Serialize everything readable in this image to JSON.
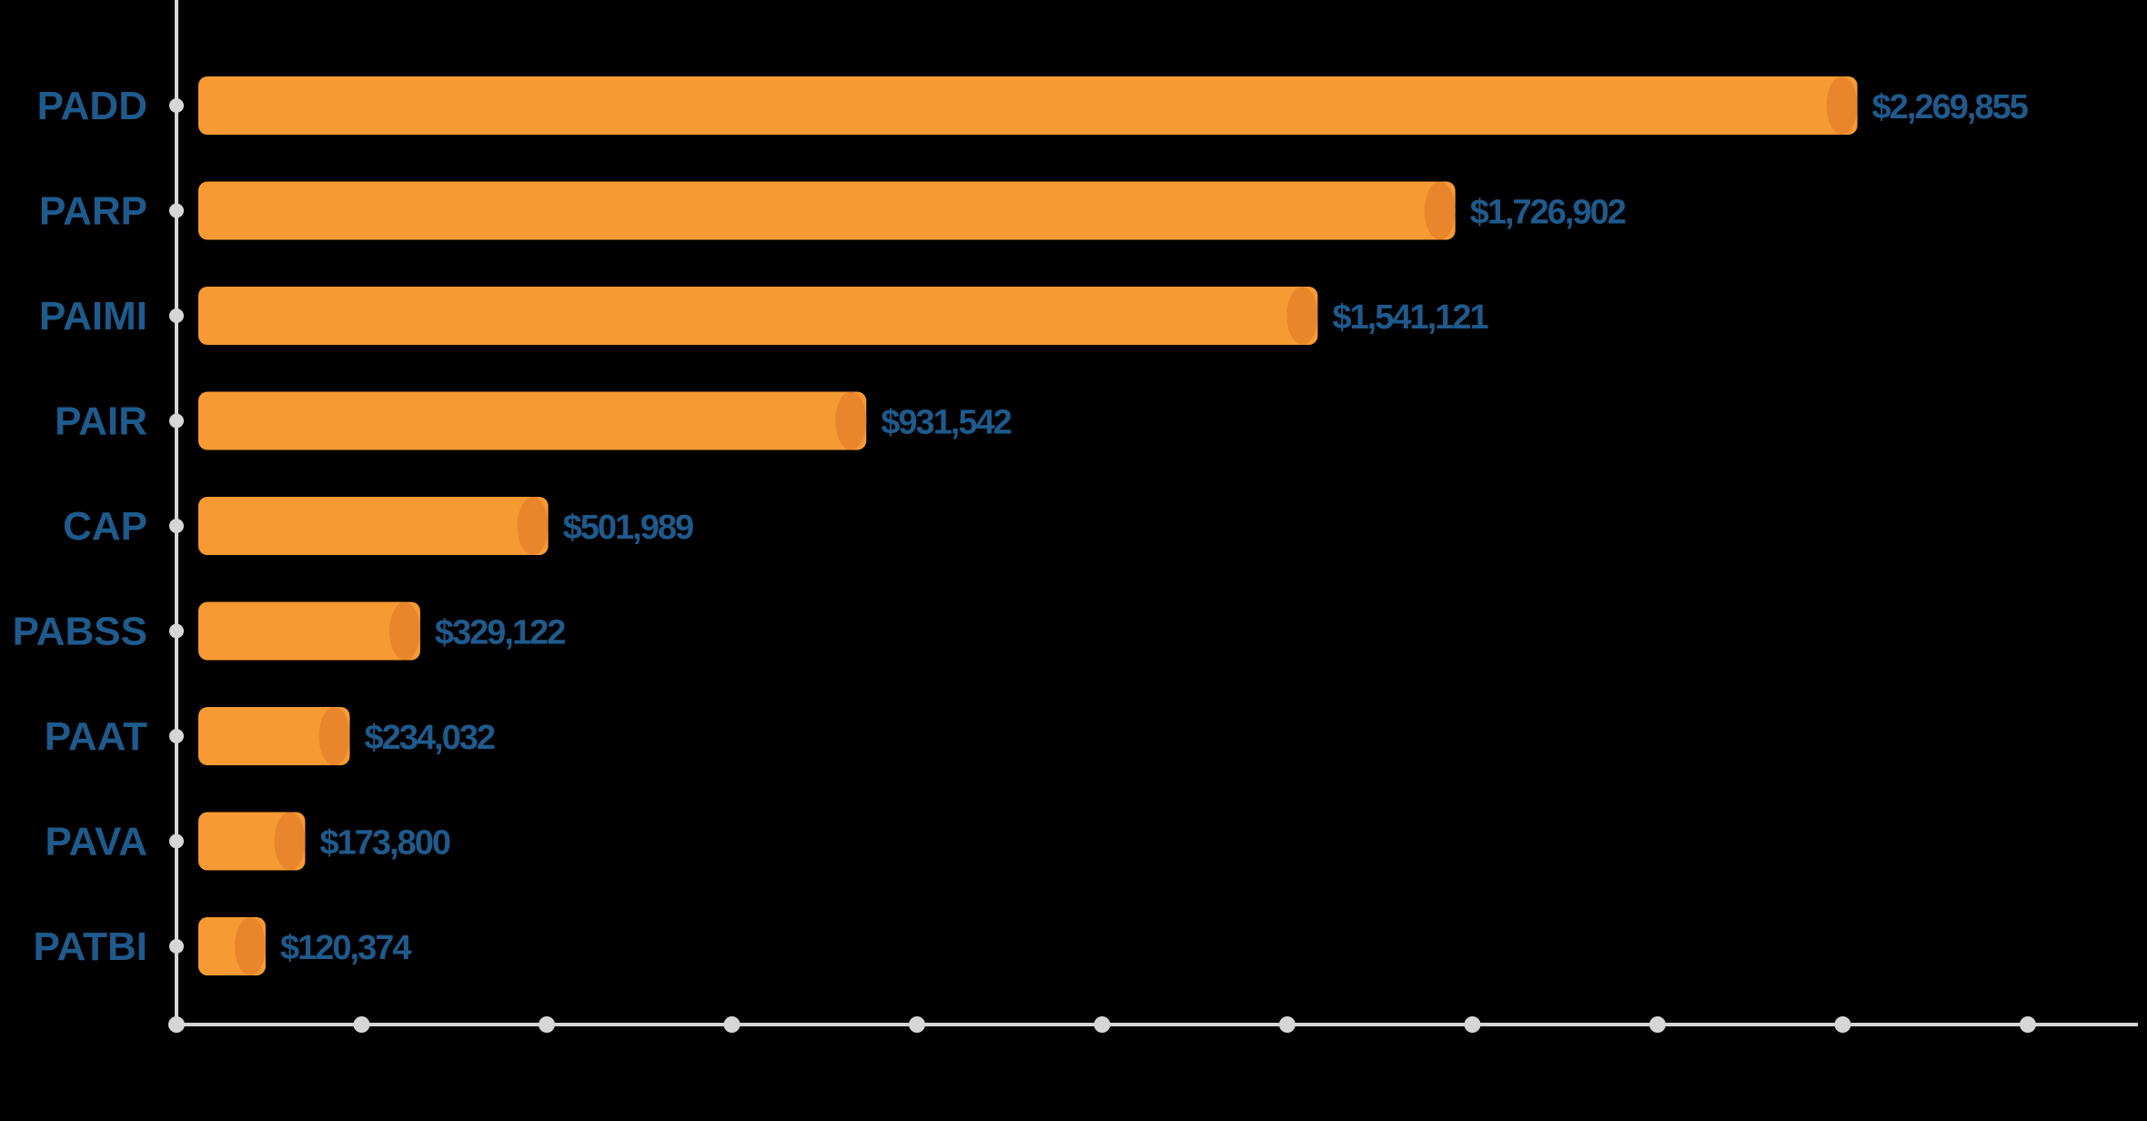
{
  "chart_data": {
    "type": "bar",
    "orientation": "horizontal",
    "title": "",
    "xlabel": "",
    "ylabel": "",
    "categories": [
      "PADD",
      "PARP",
      "PAIMI",
      "PAIR",
      "CAP",
      "PABSS",
      "PAAT",
      "PAVA",
      "PATBI"
    ],
    "values": [
      2269855,
      1726902,
      1541121,
      931542,
      501989,
      329122,
      234032,
      173800,
      120374
    ],
    "value_labels": [
      "$2,269,855",
      "$1,726,902",
      "$1,541,121",
      "$931,542",
      "$501,989",
      "$329,122",
      "$234,032",
      "$173,800",
      "$120,374"
    ],
    "xlim": [
      0,
      2500000
    ],
    "x_tick_count": 11,
    "x_tick_labels_shown": false,
    "grid": false,
    "legend": "none",
    "colors": {
      "background": "#000000",
      "bar": "#f79a33",
      "bar_end": "#e9862b",
      "label": "#1f5a8c",
      "axis": "#d6d6d6"
    }
  }
}
